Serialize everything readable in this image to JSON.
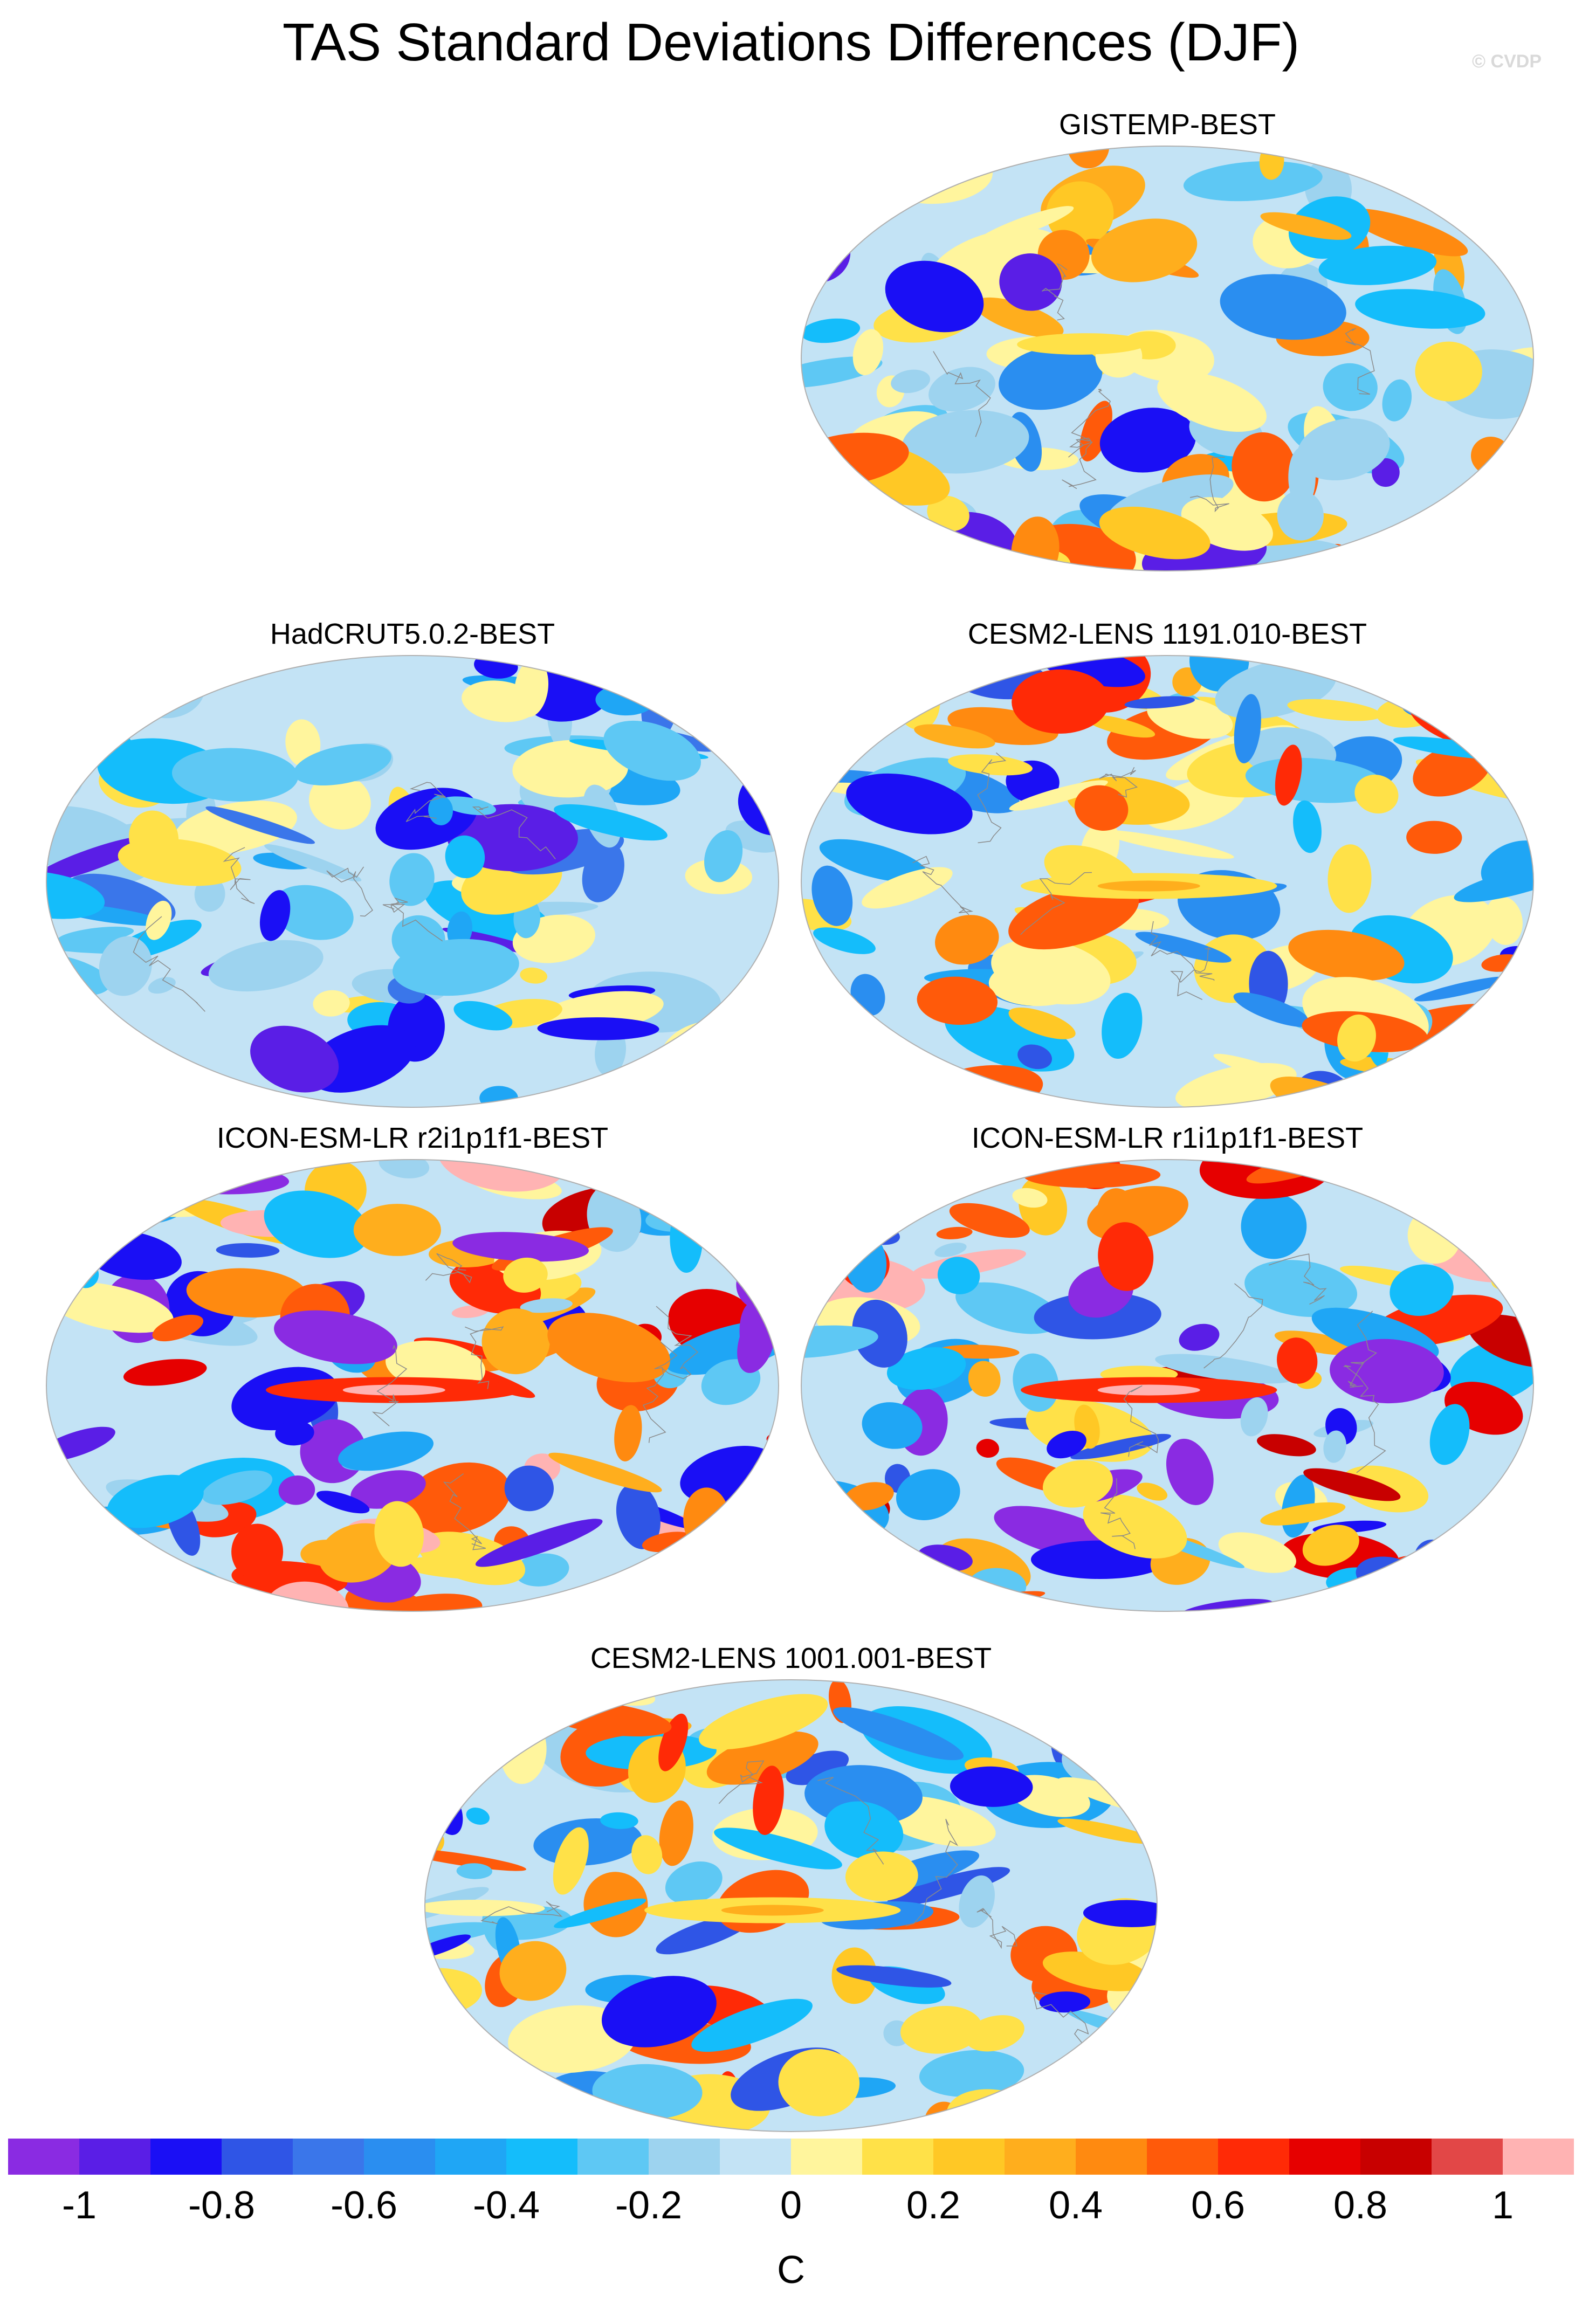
{
  "title": "TAS Standard Deviations Differences (DJF)",
  "watermark": "© CVDP",
  "panels": [
    {
      "title": "GISTEMP-BEST",
      "pattern": "obs-sparse",
      "seed": 11
    },
    {
      "title": "HadCRUT5.0.2-BEST",
      "pattern": "obs-cool",
      "seed": 23
    },
    {
      "title": "CESM2-LENS 1191.010-BEST",
      "pattern": "model-mid",
      "seed": 37
    },
    {
      "title": "ICON-ESM-LR r2i1p1f1-BEST",
      "pattern": "model-strong",
      "seed": 41
    },
    {
      "title": "ICON-ESM-LR r1i1p1f1-BEST",
      "pattern": "model-strong",
      "seed": 53
    },
    {
      "title": "CESM2-LENS 1001.001-BEST",
      "pattern": "model-mid",
      "seed": 67
    }
  ],
  "colorbar": {
    "colors": [
      "#8a2be2",
      "#5a1ee6",
      "#1a0ff5",
      "#2f55e6",
      "#3a76ea",
      "#2a8ef0",
      "#1fa6f5",
      "#14bdfb",
      "#5ec8f4",
      "#9dd3ef",
      "#c3e3f5",
      "#fff59d",
      "#ffe148",
      "#ffc825",
      "#ffae1d",
      "#ff8a10",
      "#ff5a0a",
      "#ff2a06",
      "#e60000",
      "#c80000",
      "#e24747",
      "#ffb3b3"
    ],
    "labels": [
      "-1",
      "-0.8",
      "-0.6",
      "-0.4",
      "-0.2",
      "0",
      "0.2",
      "0.4",
      "0.6",
      "0.8",
      "1"
    ],
    "units": "C"
  }
}
